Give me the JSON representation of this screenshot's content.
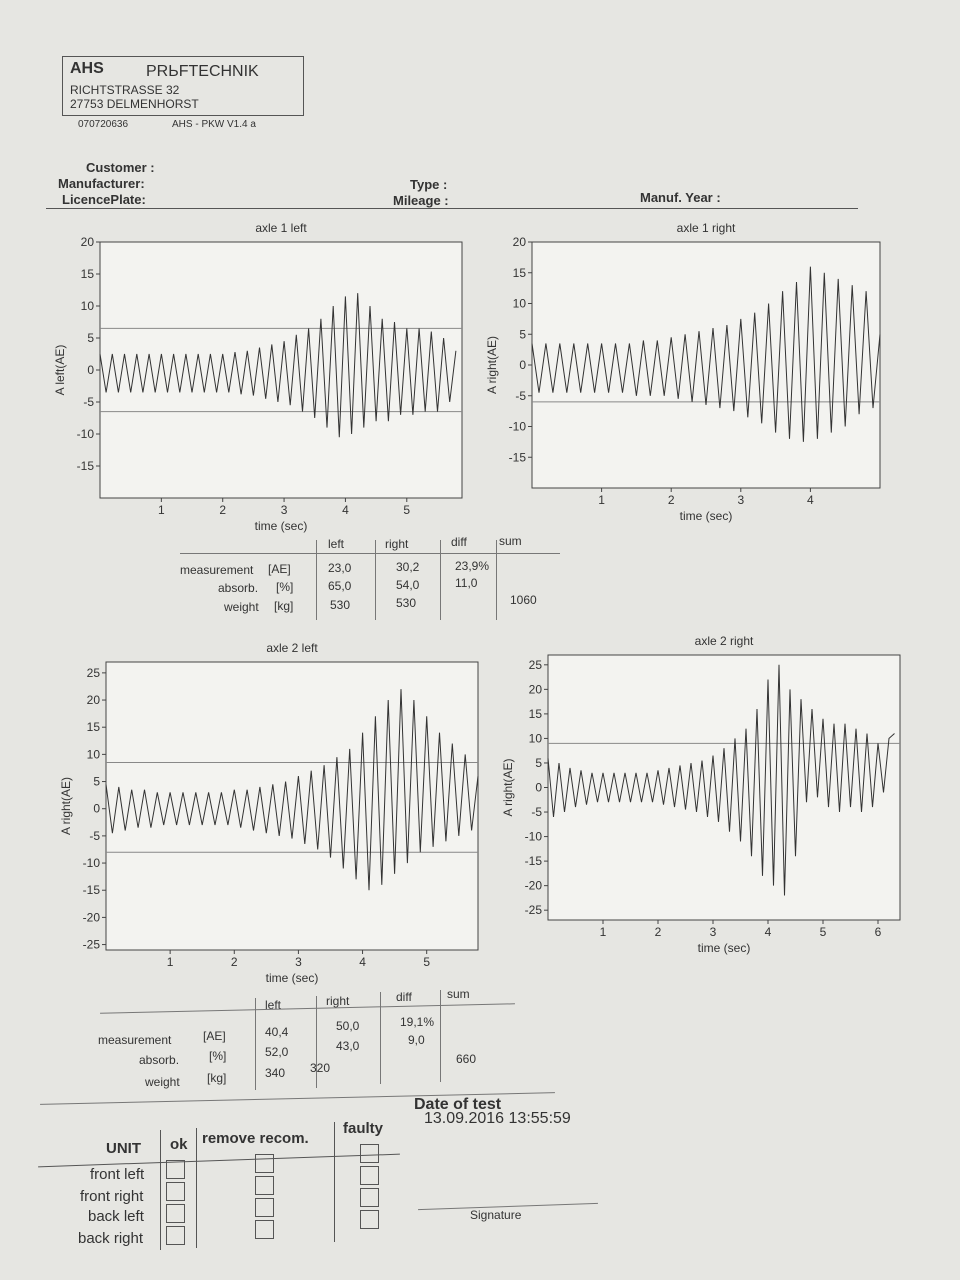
{
  "header": {
    "company": "AHS",
    "name": "PRЬFTECHNIK",
    "street": "RICHTSTRASSE 32",
    "city": "27753 DELMENHORST",
    "number": "070720636",
    "version": "AHS - PKW V1.4 a"
  },
  "fields": {
    "customer": "Customer :",
    "manufacturer": "Manufacturer:",
    "licence_plate": "LicencePlate:",
    "type": "Type :",
    "mileage": "Mileage :",
    "manuf_year": "Manuf. Year :"
  },
  "chart_data": [
    {
      "type": "line",
      "title": "axle 1 left",
      "xlabel": "time (sec)",
      "ylabel": "A left(AE)",
      "color": "#333333",
      "xlim": [
        0,
        5.9
      ],
      "ylim": [
        -20,
        20
      ],
      "xticks": [
        1,
        2,
        3,
        4,
        5
      ],
      "yticks": [
        -15,
        -10,
        -5,
        0,
        5,
        10,
        15,
        20
      ],
      "hlines": [
        6.5,
        -6.5
      ],
      "x": [
        0,
        0.1,
        0.2,
        0.3,
        0.4,
        0.5,
        0.6,
        0.7,
        0.8,
        0.9,
        1,
        1.1,
        1.2,
        1.3,
        1.4,
        1.5,
        1.6,
        1.7,
        1.8,
        1.9,
        2,
        2.1,
        2.2,
        2.3,
        2.4,
        2.5,
        2.6,
        2.7,
        2.8,
        2.9,
        3,
        3.1,
        3.2,
        3.3,
        3.4,
        3.5,
        3.6,
        3.7,
        3.8,
        3.9,
        4,
        4.1,
        4.2,
        4.3,
        4.4,
        4.5,
        4.6,
        4.7,
        4.8,
        4.9,
        5,
        5.1,
        5.2,
        5.3,
        5.4,
        5.5,
        5.6,
        5.7,
        5.8
      ],
      "values": [
        2.5,
        -3.5,
        2.5,
        -3.5,
        2.5,
        -3.5,
        2.5,
        -3.5,
        2.5,
        -3.5,
        2.5,
        -3.5,
        2.5,
        -3.5,
        2.5,
        -3.5,
        2.5,
        -3.5,
        2.5,
        -3.5,
        2.5,
        -3.5,
        2.8,
        -3.8,
        3,
        -4,
        3.5,
        -4.5,
        4,
        -5,
        4.5,
        -5.5,
        5.5,
        -6.5,
        6.5,
        -7.5,
        8,
        -9,
        10,
        -10.5,
        11.5,
        -10,
        12,
        -9,
        10,
        -8,
        8,
        -8,
        7.5,
        -7,
        6.5,
        -7,
        6.5,
        -6.5,
        6,
        -6.5,
        5,
        -5,
        3
      ]
    },
    {
      "type": "line",
      "title": "axle 1 right",
      "xlabel": "time (sec)",
      "ylabel": "A right(AE)",
      "color": "#333333",
      "xlim": [
        0,
        5.0
      ],
      "ylim": [
        -20,
        20
      ],
      "xticks": [
        1,
        2,
        3,
        4
      ],
      "yticks": [
        -15,
        -10,
        -5,
        0,
        5,
        10,
        15,
        20
      ],
      "hlines": [
        -6
      ],
      "x": [
        0,
        0.1,
        0.2,
        0.3,
        0.4,
        0.5,
        0.6,
        0.7,
        0.8,
        0.9,
        1,
        1.1,
        1.2,
        1.3,
        1.4,
        1.5,
        1.6,
        1.7,
        1.8,
        1.9,
        2,
        2.1,
        2.2,
        2.3,
        2.4,
        2.5,
        2.6,
        2.7,
        2.8,
        2.9,
        3,
        3.1,
        3.2,
        3.3,
        3.4,
        3.5,
        3.6,
        3.7,
        3.8,
        3.9,
        4,
        4.1,
        4.2,
        4.3,
        4.4,
        4.5,
        4.6,
        4.7,
        4.8,
        4.9,
        5
      ],
      "values": [
        3.5,
        -4.5,
        3.5,
        -4.5,
        3.5,
        -4.5,
        3.5,
        -4.5,
        3.5,
        -4.5,
        3.5,
        -4.5,
        3.5,
        -4.5,
        3.5,
        -5,
        4,
        -5,
        4,
        -5,
        4.5,
        -5.5,
        5,
        -6,
        5.5,
        -6.5,
        6,
        -7,
        6.5,
        -7.5,
        7.5,
        -8.5,
        8.5,
        -9.5,
        10,
        -11,
        12,
        -12,
        13.5,
        -12.5,
        16,
        -12,
        15,
        -11,
        14,
        -10,
        13,
        -8,
        12,
        -7,
        5
      ]
    },
    {
      "type": "line",
      "title": "axle 2 left",
      "xlabel": "time (sec)",
      "ylabel": "A right(AE)",
      "color": "#333333",
      "xlim": [
        0,
        5.8
      ],
      "ylim": [
        -26,
        27
      ],
      "xticks": [
        1,
        2,
        3,
        4,
        5
      ],
      "yticks": [
        -25,
        -20,
        -15,
        -10,
        -5,
        0,
        5,
        10,
        15,
        20,
        25
      ],
      "hlines": [
        8.5,
        -8
      ],
      "x": [
        0,
        0.1,
        0.2,
        0.3,
        0.4,
        0.5,
        0.6,
        0.7,
        0.8,
        0.9,
        1,
        1.1,
        1.2,
        1.3,
        1.4,
        1.5,
        1.6,
        1.7,
        1.8,
        1.9,
        2,
        2.1,
        2.2,
        2.3,
        2.4,
        2.5,
        2.6,
        2.7,
        2.8,
        2.9,
        3,
        3.1,
        3.2,
        3.3,
        3.4,
        3.5,
        3.6,
        3.7,
        3.8,
        3.9,
        4,
        4.1,
        4.2,
        4.3,
        4.4,
        4.5,
        4.6,
        4.7,
        4.8,
        4.9,
        5,
        5.1,
        5.2,
        5.3,
        5.4,
        5.5,
        5.6,
        5.7,
        5.8
      ],
      "values": [
        4.5,
        -4.5,
        4,
        -4,
        3.5,
        -3.5,
        3.5,
        -3.5,
        3,
        -3,
        3,
        -3,
        3,
        -3,
        3,
        -3,
        3,
        -3,
        3,
        -3,
        3.5,
        -3.5,
        3.5,
        -4,
        4,
        -4.5,
        4.5,
        -5,
        5,
        -5.5,
        6,
        -6.5,
        7,
        -7.5,
        8,
        -9,
        9.5,
        -11,
        11,
        -13,
        14,
        -15,
        17,
        -14,
        20,
        -12,
        22,
        -10,
        20,
        -8,
        17,
        -7,
        14,
        -6,
        12,
        -5,
        10,
        -4,
        6
      ]
    },
    {
      "type": "line",
      "title": "axle 2 right",
      "xlabel": "time (sec)",
      "ylabel": "A right(AE)",
      "color": "#333333",
      "xlim": [
        0,
        6.4
      ],
      "ylim": [
        -27,
        27
      ],
      "xticks": [
        1,
        2,
        3,
        4,
        5,
        6
      ],
      "yticks": [
        -25,
        -20,
        -15,
        -10,
        -5,
        0,
        5,
        10,
        15,
        20,
        25
      ],
      "hlines": [
        9
      ],
      "x": [
        0,
        0.1,
        0.2,
        0.3,
        0.4,
        0.5,
        0.6,
        0.7,
        0.8,
        0.9,
        1,
        1.1,
        1.2,
        1.3,
        1.4,
        1.5,
        1.6,
        1.7,
        1.8,
        1.9,
        2,
        2.1,
        2.2,
        2.3,
        2.4,
        2.5,
        2.6,
        2.7,
        2.8,
        2.9,
        3,
        3.1,
        3.2,
        3.3,
        3.4,
        3.5,
        3.6,
        3.7,
        3.8,
        3.9,
        4,
        4.1,
        4.2,
        4.3,
        4.4,
        4.5,
        4.6,
        4.7,
        4.8,
        4.9,
        5,
        5.1,
        5.2,
        5.3,
        5.4,
        5.5,
        5.6,
        5.7,
        5.8,
        5.9,
        6,
        6.1,
        6.2,
        6.3
      ],
      "values": [
        6,
        -6,
        5,
        -5,
        4,
        -4,
        3.5,
        -3.5,
        3,
        -3,
        3,
        -3,
        3,
        -3,
        3,
        -3,
        3,
        -3,
        3,
        -3,
        3.5,
        -3.5,
        4,
        -4,
        4.5,
        -4.5,
        5,
        -5,
        5.5,
        -6,
        6.5,
        -7,
        8,
        -9,
        10,
        -11,
        12,
        -14,
        16,
        -18,
        22,
        -20,
        25,
        -22,
        20,
        -14,
        18,
        -3,
        16,
        -2,
        14,
        -4,
        13,
        -5,
        13,
        -4,
        12,
        -5,
        11,
        -4,
        9,
        -1,
        10,
        11
      ]
    }
  ],
  "table1": {
    "columns": {
      "left": "left",
      "right": "right",
      "diff": "diff",
      "sum": "sum"
    },
    "rows": [
      {
        "label": "measurement",
        "unit": "[AE]",
        "left": "23,0",
        "right": "30,2",
        "diff": "23,9%"
      },
      {
        "label": "absorb.",
        "unit": "[%]",
        "left": "65,0",
        "right": "54,0",
        "diff": "11,0"
      },
      {
        "label": "weight",
        "unit": "[kg]",
        "left": "530",
        "right": "530",
        "sum": "1060"
      }
    ]
  },
  "table2": {
    "columns": {
      "left": "left",
      "right": "right",
      "diff": "diff",
      "sum": "sum"
    },
    "rows": [
      {
        "label": "measurement",
        "unit": "[AE]",
        "left": "40,4",
        "right": "50,0",
        "diff": "19,1%"
      },
      {
        "label": "absorb.",
        "unit": "[%]",
        "left": "52,0",
        "right": "43,0",
        "diff": "9,0"
      },
      {
        "label": "weight",
        "unit": "[kg]",
        "left": "340",
        "right": "320",
        "sum": "660"
      }
    ]
  },
  "unit_table": {
    "headers": {
      "unit": "UNIT",
      "ok": "ok",
      "remove": "remove recom.",
      "faulty": "faulty"
    },
    "rows": [
      "front left",
      "front right",
      "back left",
      "back right"
    ]
  },
  "test": {
    "label": "Date of test",
    "date": "13.09.2016 13:55:59",
    "signature": "Signature"
  }
}
